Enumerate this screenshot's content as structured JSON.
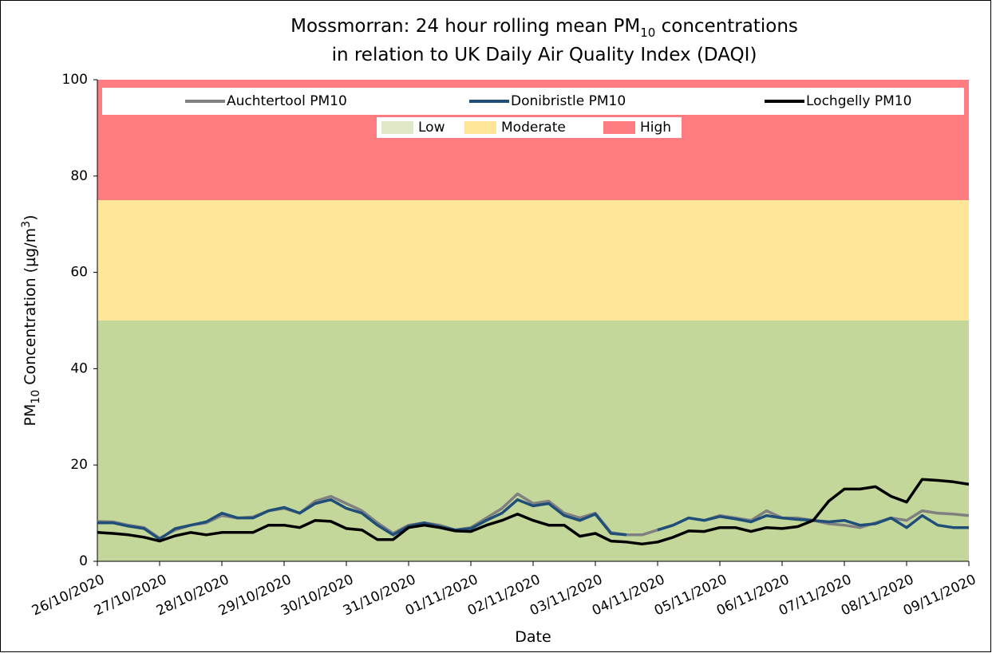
{
  "chart_data": {
    "type": "line",
    "title": [
      [
        "Mossmorran: 24 hour rolling mean PM",
        "10",
        " concentrations"
      ],
      [
        "in relation to UK Daily Air Quality Index (DAQI)"
      ]
    ],
    "ylabel": [
      "PM",
      "10",
      " Concentration (µg/m",
      "3",
      ")"
    ],
    "xlabel": "Date",
    "xlim": [
      0,
      14
    ],
    "xticks": [
      {
        "value": 0,
        "label": "26/10/2020"
      },
      {
        "value": 1,
        "label": "27/10/2020"
      },
      {
        "value": 2,
        "label": "28/10/2020"
      },
      {
        "value": 3,
        "label": "29/10/2020"
      },
      {
        "value": 4,
        "label": "30/10/2020"
      },
      {
        "value": 5,
        "label": "31/10/2020"
      },
      {
        "value": 6,
        "label": "01/11/2020"
      },
      {
        "value": 7,
        "label": "02/11/2020"
      },
      {
        "value": 8,
        "label": "03/11/2020"
      },
      {
        "value": 9,
        "label": "04/11/2020"
      },
      {
        "value": 10,
        "label": "05/11/2020"
      },
      {
        "value": 11,
        "label": "06/11/2020"
      },
      {
        "value": 12,
        "label": "07/11/2020"
      },
      {
        "value": 13,
        "label": "08/11/2020"
      },
      {
        "value": 14,
        "label": "09/11/2020"
      }
    ],
    "ylim": [
      0,
      100
    ],
    "yticks": [
      0,
      20,
      40,
      60,
      80,
      100
    ],
    "bands": [
      {
        "name": "Low",
        "from": 0,
        "to": 50,
        "color": "#c4d79b"
      },
      {
        "name": "Moderate",
        "from": 50,
        "to": 75,
        "color": "#ffe699"
      },
      {
        "name": "High",
        "from": 75,
        "to": 100,
        "color": "#ff7c80"
      }
    ],
    "x": [
      0,
      0.25,
      0.5,
      0.75,
      1,
      1.25,
      1.5,
      1.75,
      2,
      2.25,
      2.5,
      2.75,
      3,
      3.25,
      3.5,
      3.75,
      4,
      4.25,
      4.5,
      4.75,
      5,
      5.25,
      5.5,
      5.75,
      6,
      6.25,
      6.5,
      6.75,
      7,
      7.25,
      7.5,
      7.75,
      8,
      8.25,
      8.5,
      8.75,
      9,
      9.25,
      9.5,
      9.75,
      10,
      10.25,
      10.5,
      10.75,
      11,
      11.25,
      11.5,
      11.75,
      12,
      12.25,
      12.5,
      12.75,
      13,
      13.25,
      13.5,
      13.75,
      14
    ],
    "series": [
      {
        "name": "Auchtertool PM10",
        "color": "#808080",
        "values": [
          8.3,
          8.2,
          7.5,
          7,
          4.8,
          6.5,
          7.5,
          8,
          9.5,
          9,
          9.2,
          10.5,
          11,
          10,
          12.5,
          13.5,
          12,
          10.5,
          8,
          5.8,
          7.5,
          8,
          7.5,
          6.5,
          7,
          9,
          11,
          14,
          12,
          12.5,
          10,
          9,
          10,
          6,
          5.5,
          5.5,
          6.5,
          7.5,
          9,
          8.5,
          9.5,
          9,
          8.5,
          10.5,
          9,
          9,
          8.5,
          7.8,
          7.5,
          7,
          8,
          9,
          8.5,
          10.5,
          10,
          9.8,
          9.5
        ]
      },
      {
        "name": "Donibristle PM10",
        "color": "#1f4e79",
        "values": [
          8,
          8,
          7.3,
          6.8,
          4.6,
          6.8,
          7.5,
          8.2,
          10,
          9,
          9,
          10.5,
          11.2,
          10,
          12,
          12.8,
          11,
          10,
          7.5,
          5.5,
          7.3,
          8,
          7.2,
          6.5,
          6.8,
          8.5,
          10,
          12.8,
          11.5,
          12,
          9.5,
          8.5,
          9.8,
          5.8,
          5.5,
          null,
          6.5,
          7.5,
          9,
          8.5,
          9.3,
          8.8,
          8.2,
          9.5,
          9,
          8.7,
          8.5,
          8.2,
          8.5,
          7.5,
          7.8,
          9,
          7,
          9.5,
          7.5,
          7,
          7
        ]
      },
      {
        "name": "Lochgelly PM10",
        "color": "#000000",
        "values": [
          6,
          5.8,
          5.5,
          5,
          4.2,
          5.3,
          6,
          5.5,
          6,
          6,
          6,
          7.5,
          7.5,
          7,
          8.5,
          8.3,
          6.8,
          6.5,
          4.5,
          4.5,
          7,
          7.5,
          7,
          6.3,
          6.2,
          7.5,
          8.5,
          9.8,
          8.5,
          7.5,
          7.5,
          5.2,
          5.8,
          4.2,
          4,
          3.6,
          4,
          5,
          6.3,
          6.2,
          7,
          7,
          6.2,
          7,
          6.8,
          7.2,
          8.5,
          12.5,
          15,
          15,
          15.5,
          13.5,
          12.3,
          17,
          16.8,
          16.5,
          16
        ]
      }
    ]
  }
}
